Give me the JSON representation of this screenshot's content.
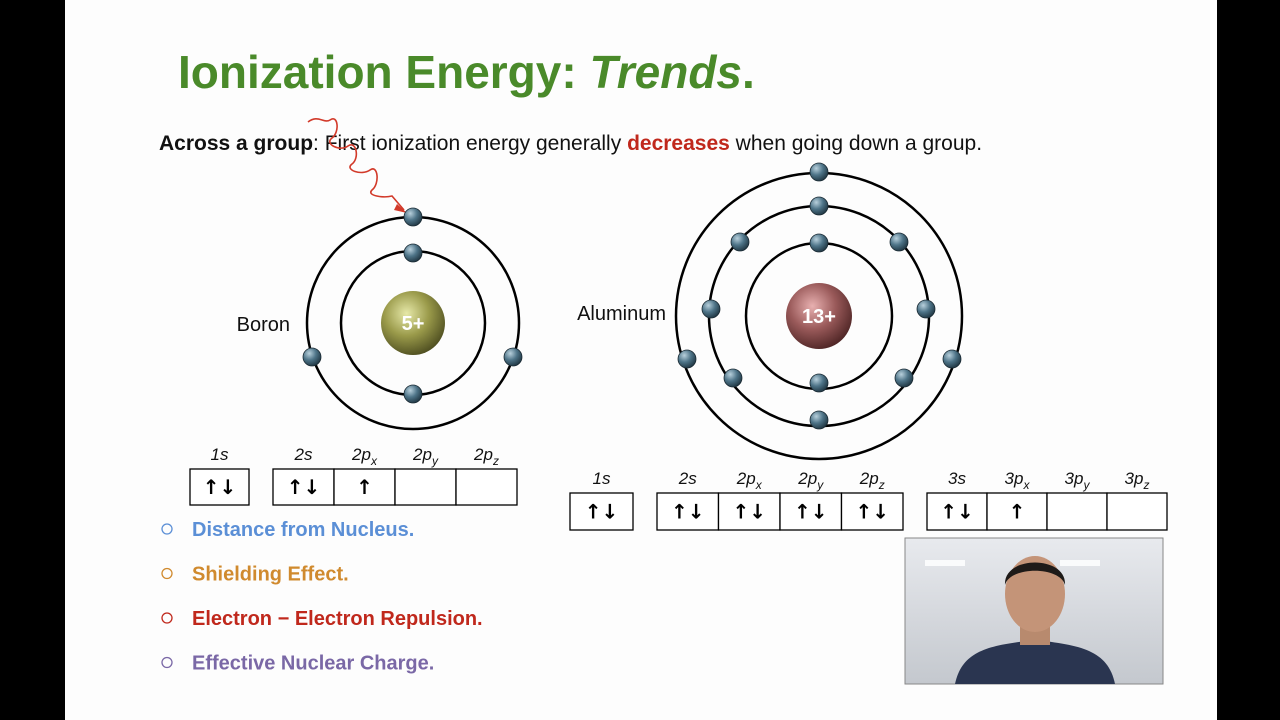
{
  "header": {
    "title": {
      "main": "Ionization Energy:",
      "emphasis": "Trends",
      "end": "."
    }
  },
  "statement": {
    "lead": "Across a group",
    "colon": ":",
    "text": "First ionization energy generally",
    "keyword": "decreases",
    "rest": "when going down a group."
  },
  "atoms": [
    {
      "name": "Boron",
      "charge": "5+"
    },
    {
      "name": "Aluminum",
      "charge": "13+"
    }
  ],
  "orbital_diagrams": [
    {
      "groups": [
        [
          {
            "label": "1s",
            "fill": "↑↓"
          }
        ],
        [
          {
            "label": "2s",
            "fill": "↑↓"
          },
          {
            "label": "2p",
            "sub": "x",
            "fill": "↑"
          },
          {
            "label": "2p",
            "sub": "y"
          },
          {
            "label": "2p",
            "sub": "z"
          }
        ]
      ]
    },
    {
      "groups": [
        [
          {
            "label": "1s",
            "fill": "↑↓"
          }
        ],
        [
          {
            "label": "2s",
            "fill": "↑↓"
          },
          {
            "label": "2p",
            "sub": "x",
            "fill": "↑↓"
          },
          {
            "label": "2p",
            "sub": "y",
            "fill": "↑↓"
          },
          {
            "label": "2p",
            "sub": "z",
            "fill": "↑↓"
          }
        ],
        [
          {
            "label": "3s",
            "fill": "↑↓"
          },
          {
            "label": "3p",
            "sub": "x",
            "fill": "↑"
          },
          {
            "label": "3p",
            "sub": "y"
          },
          {
            "label": "3p",
            "sub": "z"
          }
        ]
      ]
    }
  ],
  "factors": [
    {
      "text": "Distance from Nucleus.",
      "color": "#5b8fd6"
    },
    {
      "text": "Shielding Effect.",
      "color": "#d08a2e"
    },
    {
      "text": "Electron − Electron Repulsion.",
      "color": "#c0281c"
    },
    {
      "text": "Effective Nuclear Charge.",
      "color": "#7a68a6"
    }
  ]
}
